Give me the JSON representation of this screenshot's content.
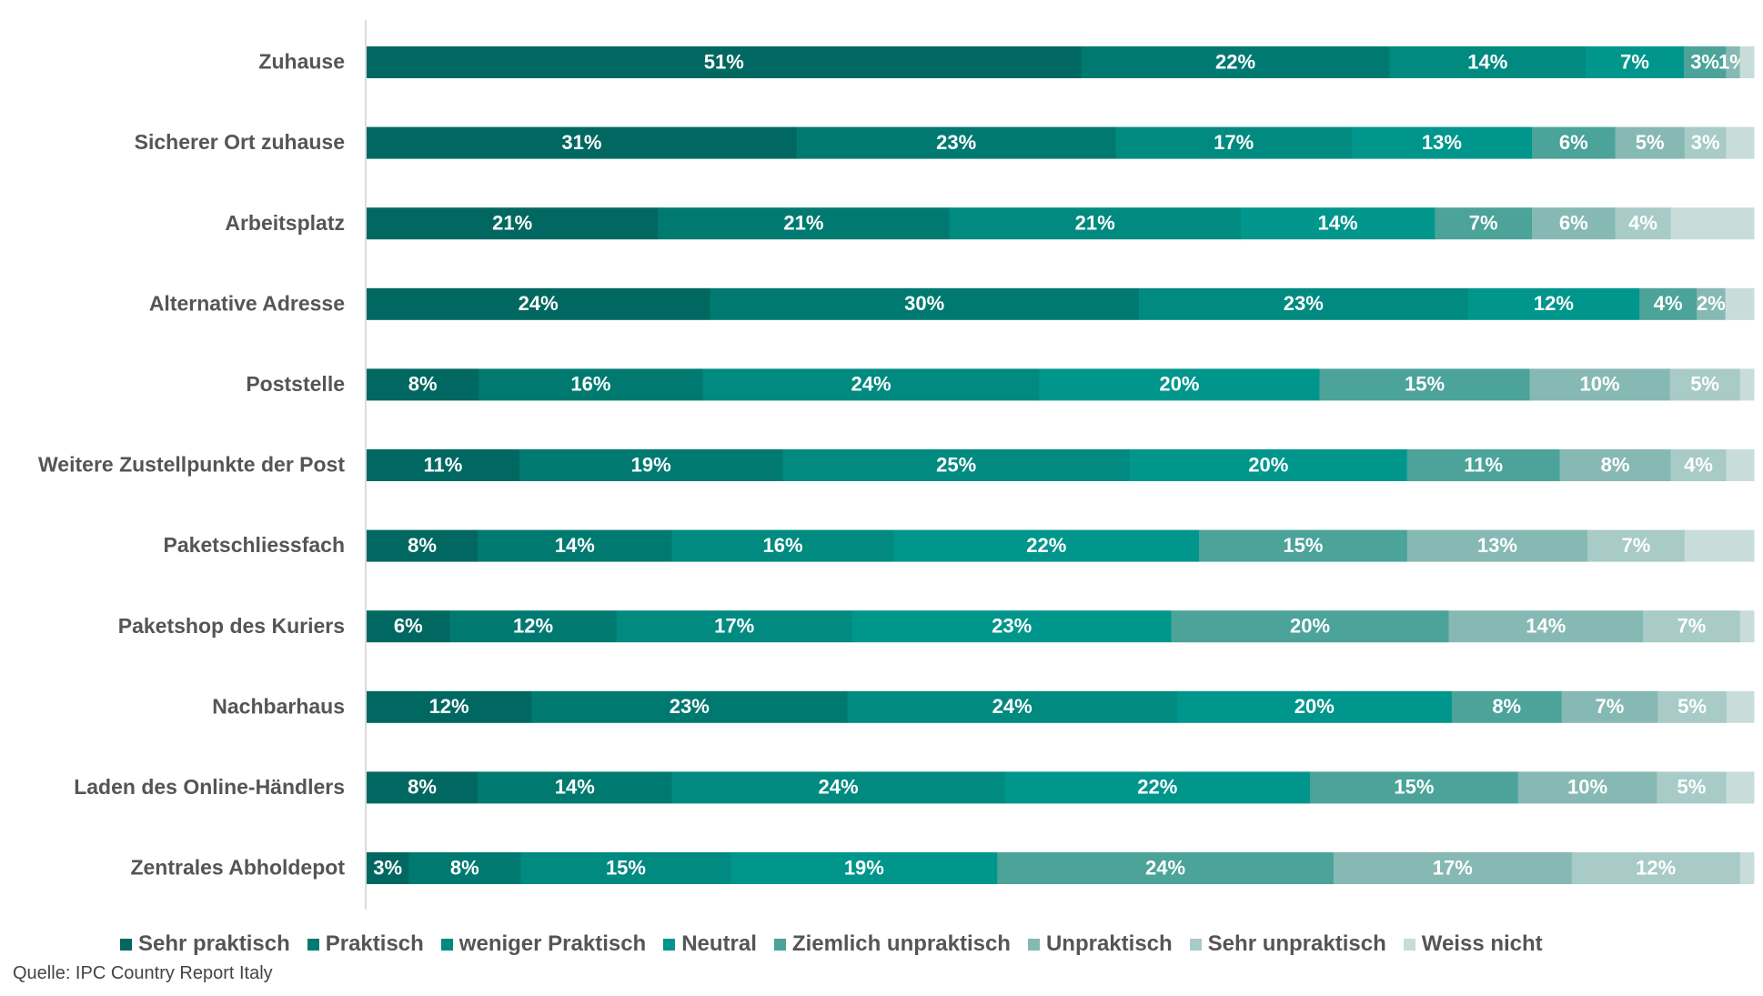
{
  "chart_data": {
    "type": "bar",
    "orientation": "horizontal",
    "stacked": true,
    "categories": [
      "Zuhause",
      "Sicherer Ort zuhause",
      "Arbeitsplatz",
      "Alternative Adresse",
      "Poststelle",
      "Weitere Zustellpunkte der Post",
      "Paketschliessfach",
      "Paketshop des Kuriers",
      "Nachbarhaus",
      "Laden des Online-Händlers",
      "Zentrales Abholdepot"
    ],
    "series": [
      {
        "name": "Sehr praktisch",
        "color": "#006860",
        "values": [
          51,
          31,
          21,
          24,
          8,
          11,
          8,
          6,
          12,
          8,
          3
        ]
      },
      {
        "name": "Praktisch",
        "color": "#007a71",
        "values": [
          22,
          23,
          21,
          30,
          16,
          19,
          14,
          12,
          23,
          14,
          8
        ]
      },
      {
        "name": "weniger Praktisch",
        "color": "#008a80",
        "values": [
          14,
          17,
          21,
          23,
          24,
          25,
          16,
          17,
          24,
          24,
          15
        ]
      },
      {
        "name": "Neutral",
        "color": "#00968c",
        "values": [
          7,
          13,
          14,
          12,
          20,
          20,
          22,
          23,
          20,
          22,
          19
        ]
      },
      {
        "name": "Ziemlich unpraktisch",
        "color": "#4ba39a",
        "values": [
          3,
          6,
          7,
          4,
          15,
          11,
          15,
          20,
          8,
          15,
          24
        ]
      },
      {
        "name": "Unpraktisch",
        "color": "#86b9b3",
        "values": [
          1,
          5,
          6,
          2,
          10,
          8,
          13,
          14,
          7,
          10,
          17
        ]
      },
      {
        "name": "Sehr unpraktisch",
        "color": "#a8cbc7",
        "values": [
          0,
          3,
          4,
          0,
          5,
          4,
          7,
          7,
          5,
          5,
          12
        ]
      },
      {
        "name": "Weiss nicht",
        "color": "#c8dcda",
        "values": [
          1,
          2,
          6,
          2,
          1,
          2,
          5,
          1,
          2,
          2,
          1
        ]
      }
    ],
    "labels": [
      [
        "51%",
        "22%",
        "14%",
        "7%",
        "3%",
        "1%",
        "",
        ""
      ],
      [
        "31%",
        "23%",
        "17%",
        "13%",
        "6%",
        "5%",
        "3%",
        ""
      ],
      [
        "21%",
        "21%",
        "21%",
        "14%",
        "7%",
        "6%",
        "4%",
        ""
      ],
      [
        "24%",
        "30%",
        "23%",
        "12%",
        "4%",
        "2%",
        "",
        ""
      ],
      [
        "8%",
        "16%",
        "24%",
        "20%",
        "15%",
        "10%",
        "5%",
        ""
      ],
      [
        "11%",
        "19%",
        "25%",
        "20%",
        "11%",
        "8%",
        "4%",
        ""
      ],
      [
        "8%",
        "14%",
        "16%",
        "22%",
        "15%",
        "13%",
        "7%",
        ""
      ],
      [
        "6%",
        "12%",
        "17%",
        "23%",
        "20%",
        "14%",
        "7%",
        ""
      ],
      [
        "12%",
        "23%",
        "24%",
        "20%",
        "8%",
        "7%",
        "5%",
        ""
      ],
      [
        "8%",
        "14%",
        "24%",
        "22%",
        "15%",
        "10%",
        "5%",
        ""
      ],
      [
        "3%",
        "8%",
        "15%",
        "19%",
        "24%",
        "17%",
        "12%",
        ""
      ]
    ],
    "xlim": [
      0,
      100
    ],
    "grid": false,
    "legend_position": "bottom"
  },
  "source": "Quelle: IPC Country Report Italy"
}
